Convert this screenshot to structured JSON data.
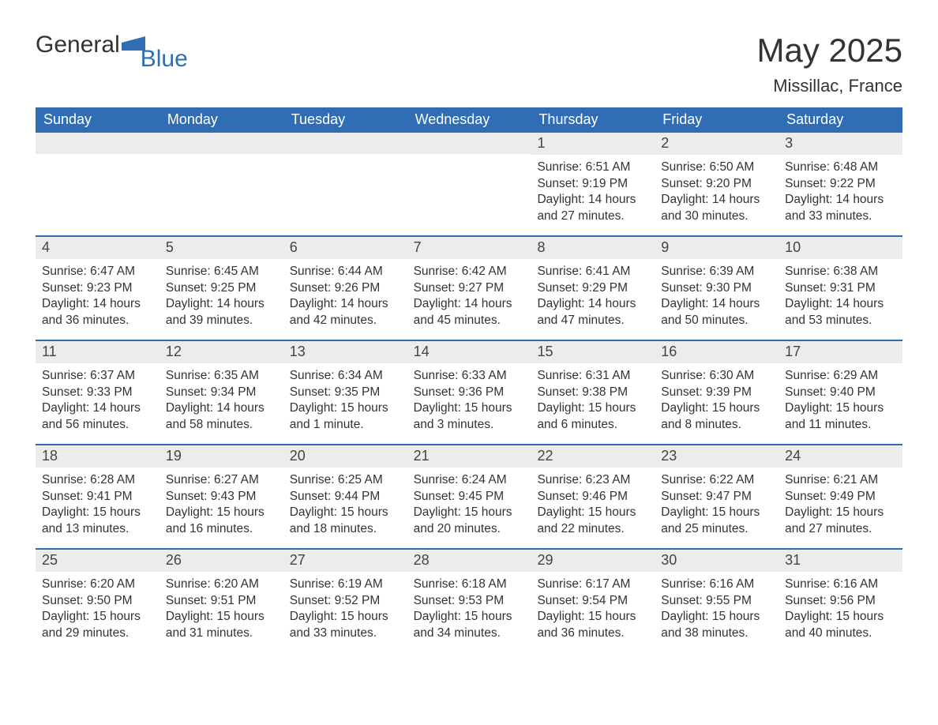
{
  "logo": {
    "text1": "General",
    "text2": "Blue",
    "accent_color": "#2f6eb5"
  },
  "title": "May 2025",
  "location": "Missillac, France",
  "colors": {
    "header_bg": "#2f6eb5",
    "header_text": "#ffffff",
    "daynum_bg": "#ececec",
    "row_border": "#2f6eb5",
    "text": "#333333",
    "background": "#ffffff"
  },
  "fonts": {
    "title_size": 42,
    "location_size": 22,
    "dow_size": 18,
    "daynum_size": 18,
    "body_size": 15.5
  },
  "days_of_week": [
    "Sunday",
    "Monday",
    "Tuesday",
    "Wednesday",
    "Thursday",
    "Friday",
    "Saturday"
  ],
  "weeks": [
    [
      {
        "n": "",
        "sunrise": "",
        "sunset": "",
        "daylight": ""
      },
      {
        "n": "",
        "sunrise": "",
        "sunset": "",
        "daylight": ""
      },
      {
        "n": "",
        "sunrise": "",
        "sunset": "",
        "daylight": ""
      },
      {
        "n": "",
        "sunrise": "",
        "sunset": "",
        "daylight": ""
      },
      {
        "n": "1",
        "sunrise": "Sunrise: 6:51 AM",
        "sunset": "Sunset: 9:19 PM",
        "daylight": "Daylight: 14 hours and 27 minutes."
      },
      {
        "n": "2",
        "sunrise": "Sunrise: 6:50 AM",
        "sunset": "Sunset: 9:20 PM",
        "daylight": "Daylight: 14 hours and 30 minutes."
      },
      {
        "n": "3",
        "sunrise": "Sunrise: 6:48 AM",
        "sunset": "Sunset: 9:22 PM",
        "daylight": "Daylight: 14 hours and 33 minutes."
      }
    ],
    [
      {
        "n": "4",
        "sunrise": "Sunrise: 6:47 AM",
        "sunset": "Sunset: 9:23 PM",
        "daylight": "Daylight: 14 hours and 36 minutes."
      },
      {
        "n": "5",
        "sunrise": "Sunrise: 6:45 AM",
        "sunset": "Sunset: 9:25 PM",
        "daylight": "Daylight: 14 hours and 39 minutes."
      },
      {
        "n": "6",
        "sunrise": "Sunrise: 6:44 AM",
        "sunset": "Sunset: 9:26 PM",
        "daylight": "Daylight: 14 hours and 42 minutes."
      },
      {
        "n": "7",
        "sunrise": "Sunrise: 6:42 AM",
        "sunset": "Sunset: 9:27 PM",
        "daylight": "Daylight: 14 hours and 45 minutes."
      },
      {
        "n": "8",
        "sunrise": "Sunrise: 6:41 AM",
        "sunset": "Sunset: 9:29 PM",
        "daylight": "Daylight: 14 hours and 47 minutes."
      },
      {
        "n": "9",
        "sunrise": "Sunrise: 6:39 AM",
        "sunset": "Sunset: 9:30 PM",
        "daylight": "Daylight: 14 hours and 50 minutes."
      },
      {
        "n": "10",
        "sunrise": "Sunrise: 6:38 AM",
        "sunset": "Sunset: 9:31 PM",
        "daylight": "Daylight: 14 hours and 53 minutes."
      }
    ],
    [
      {
        "n": "11",
        "sunrise": "Sunrise: 6:37 AM",
        "sunset": "Sunset: 9:33 PM",
        "daylight": "Daylight: 14 hours and 56 minutes."
      },
      {
        "n": "12",
        "sunrise": "Sunrise: 6:35 AM",
        "sunset": "Sunset: 9:34 PM",
        "daylight": "Daylight: 14 hours and 58 minutes."
      },
      {
        "n": "13",
        "sunrise": "Sunrise: 6:34 AM",
        "sunset": "Sunset: 9:35 PM",
        "daylight": "Daylight: 15 hours and 1 minute."
      },
      {
        "n": "14",
        "sunrise": "Sunrise: 6:33 AM",
        "sunset": "Sunset: 9:36 PM",
        "daylight": "Daylight: 15 hours and 3 minutes."
      },
      {
        "n": "15",
        "sunrise": "Sunrise: 6:31 AM",
        "sunset": "Sunset: 9:38 PM",
        "daylight": "Daylight: 15 hours and 6 minutes."
      },
      {
        "n": "16",
        "sunrise": "Sunrise: 6:30 AM",
        "sunset": "Sunset: 9:39 PM",
        "daylight": "Daylight: 15 hours and 8 minutes."
      },
      {
        "n": "17",
        "sunrise": "Sunrise: 6:29 AM",
        "sunset": "Sunset: 9:40 PM",
        "daylight": "Daylight: 15 hours and 11 minutes."
      }
    ],
    [
      {
        "n": "18",
        "sunrise": "Sunrise: 6:28 AM",
        "sunset": "Sunset: 9:41 PM",
        "daylight": "Daylight: 15 hours and 13 minutes."
      },
      {
        "n": "19",
        "sunrise": "Sunrise: 6:27 AM",
        "sunset": "Sunset: 9:43 PM",
        "daylight": "Daylight: 15 hours and 16 minutes."
      },
      {
        "n": "20",
        "sunrise": "Sunrise: 6:25 AM",
        "sunset": "Sunset: 9:44 PM",
        "daylight": "Daylight: 15 hours and 18 minutes."
      },
      {
        "n": "21",
        "sunrise": "Sunrise: 6:24 AM",
        "sunset": "Sunset: 9:45 PM",
        "daylight": "Daylight: 15 hours and 20 minutes."
      },
      {
        "n": "22",
        "sunrise": "Sunrise: 6:23 AM",
        "sunset": "Sunset: 9:46 PM",
        "daylight": "Daylight: 15 hours and 22 minutes."
      },
      {
        "n": "23",
        "sunrise": "Sunrise: 6:22 AM",
        "sunset": "Sunset: 9:47 PM",
        "daylight": "Daylight: 15 hours and 25 minutes."
      },
      {
        "n": "24",
        "sunrise": "Sunrise: 6:21 AM",
        "sunset": "Sunset: 9:49 PM",
        "daylight": "Daylight: 15 hours and 27 minutes."
      }
    ],
    [
      {
        "n": "25",
        "sunrise": "Sunrise: 6:20 AM",
        "sunset": "Sunset: 9:50 PM",
        "daylight": "Daylight: 15 hours and 29 minutes."
      },
      {
        "n": "26",
        "sunrise": "Sunrise: 6:20 AM",
        "sunset": "Sunset: 9:51 PM",
        "daylight": "Daylight: 15 hours and 31 minutes."
      },
      {
        "n": "27",
        "sunrise": "Sunrise: 6:19 AM",
        "sunset": "Sunset: 9:52 PM",
        "daylight": "Daylight: 15 hours and 33 minutes."
      },
      {
        "n": "28",
        "sunrise": "Sunrise: 6:18 AM",
        "sunset": "Sunset: 9:53 PM",
        "daylight": "Daylight: 15 hours and 34 minutes."
      },
      {
        "n": "29",
        "sunrise": "Sunrise: 6:17 AM",
        "sunset": "Sunset: 9:54 PM",
        "daylight": "Daylight: 15 hours and 36 minutes."
      },
      {
        "n": "30",
        "sunrise": "Sunrise: 6:16 AM",
        "sunset": "Sunset: 9:55 PM",
        "daylight": "Daylight: 15 hours and 38 minutes."
      },
      {
        "n": "31",
        "sunrise": "Sunrise: 6:16 AM",
        "sunset": "Sunset: 9:56 PM",
        "daylight": "Daylight: 15 hours and 40 minutes."
      }
    ]
  ]
}
